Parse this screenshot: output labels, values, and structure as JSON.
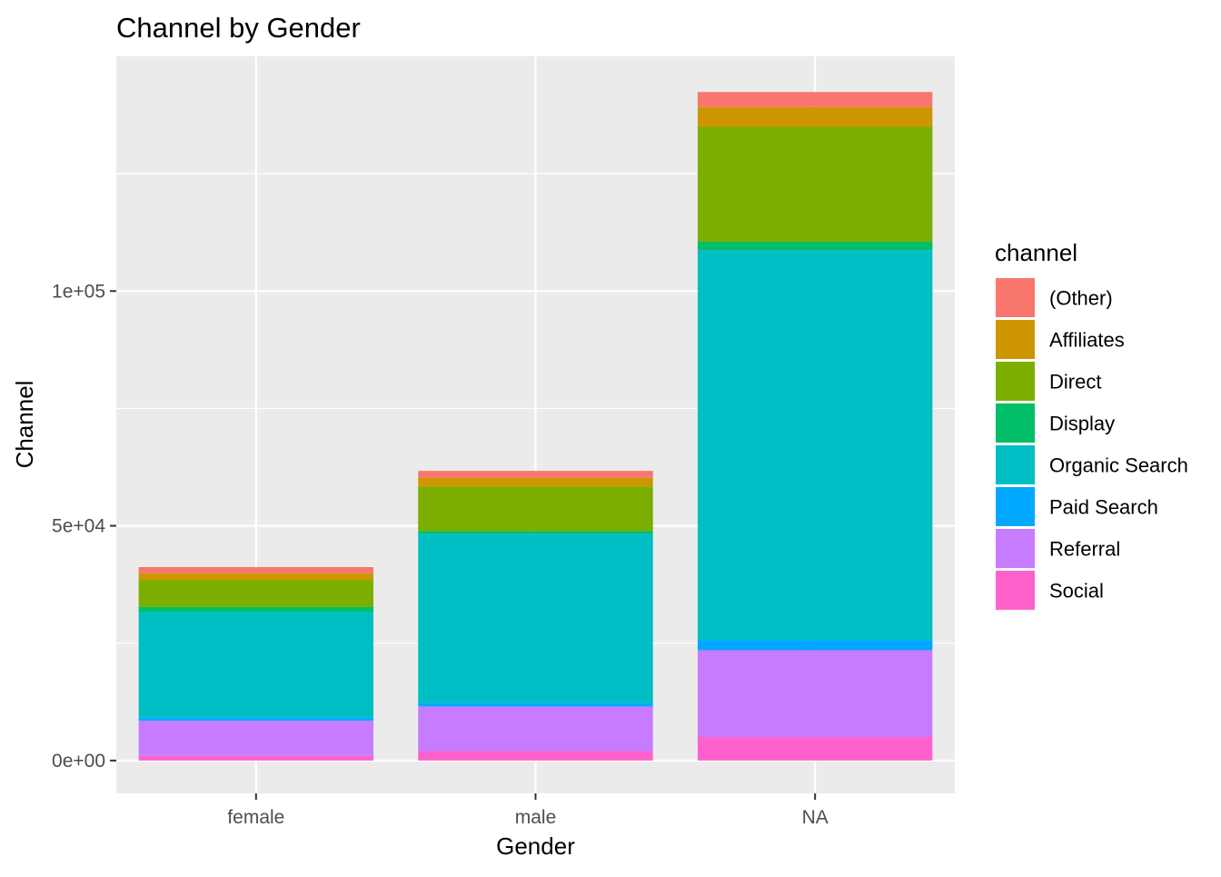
{
  "chart_data": {
    "type": "bar",
    "stacked": true,
    "title": "Channel by Gender",
    "xlabel": "Gender",
    "ylabel": "Channel",
    "categories": [
      "female",
      "male",
      "NA"
    ],
    "ylim": [
      -7000,
      150000
    ],
    "yticks": [
      {
        "value": 0,
        "label": "0e+00"
      },
      {
        "value": 50000,
        "label": "5e+04"
      },
      {
        "value": 100000,
        "label": "1e+05"
      }
    ],
    "grid": true,
    "legend": {
      "title": "channel",
      "position": "right"
    },
    "series": [
      {
        "name": "Social",
        "color": "#FF61CC",
        "values": [
          1000,
          2000,
          5000
        ]
      },
      {
        "name": "Referral",
        "color": "#C77CFF",
        "values": [
          7500,
          9500,
          18500
        ]
      },
      {
        "name": "Paid Search",
        "color": "#00A9FF",
        "values": [
          600,
          800,
          2200
        ]
      },
      {
        "name": "Organic Search",
        "color": "#00BFC4",
        "values": [
          22500,
          36000,
          83000
        ]
      },
      {
        "name": "Display",
        "color": "#00BE67",
        "values": [
          1100,
          600,
          1800
        ]
      },
      {
        "name": "Direct",
        "color": "#7CAE00",
        "values": [
          5700,
          9500,
          24500
        ]
      },
      {
        "name": "Affiliates",
        "color": "#CD9600",
        "values": [
          1500,
          1800,
          4200
        ]
      },
      {
        "name": "(Other)",
        "color": "#F8766D",
        "values": [
          1300,
          1500,
          3200
        ]
      }
    ]
  }
}
